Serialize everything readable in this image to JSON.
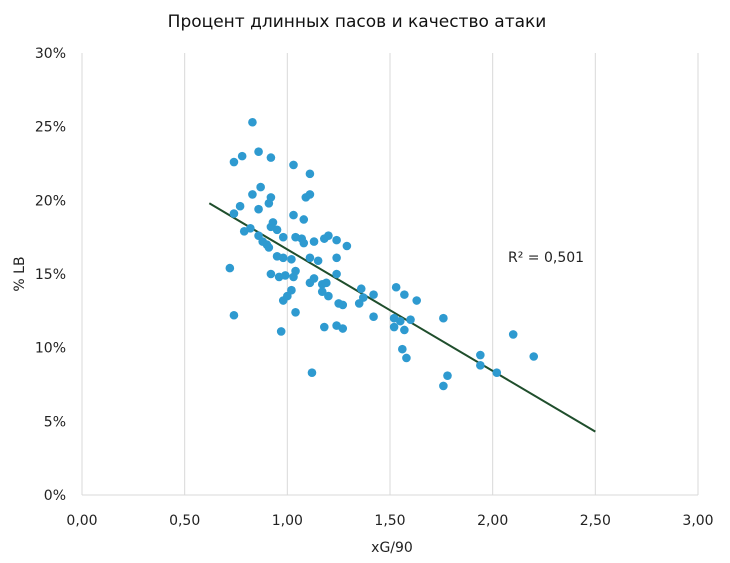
{
  "chart_data": {
    "type": "scatter",
    "title": "Процент длинных пасов и качество атаки",
    "xlabel": "xG/90",
    "ylabel": "% LB",
    "xlim": [
      0,
      3
    ],
    "ylim": [
      0,
      30
    ],
    "xticks": [
      "0,00",
      "0,50",
      "1,00",
      "1,50",
      "2,00",
      "2,50",
      "3,00"
    ],
    "yticks": [
      "0%",
      "5%",
      "10%",
      "15%",
      "20%",
      "25%",
      "30%"
    ],
    "grid": "vertical",
    "point_color": "#2E9AD0",
    "trendline": {
      "type": "linear",
      "color": "#1F4E2C",
      "from": [
        0.62,
        19.8
      ],
      "to": [
        2.5,
        4.3
      ],
      "annotation": "R² = 0,501"
    },
    "series": [
      {
        "points": [
          [
            0.83,
            25.3
          ],
          [
            0.74,
            22.6
          ],
          [
            0.78,
            23.0
          ],
          [
            0.86,
            23.3
          ],
          [
            0.92,
            22.9
          ],
          [
            1.03,
            22.4
          ],
          [
            1.11,
            21.8
          ],
          [
            0.87,
            20.9
          ],
          [
            0.83,
            20.4
          ],
          [
            1.09,
            20.2
          ],
          [
            1.11,
            20.4
          ],
          [
            0.92,
            20.2
          ],
          [
            0.74,
            19.1
          ],
          [
            0.77,
            19.6
          ],
          [
            0.86,
            19.4
          ],
          [
            0.91,
            19.8
          ],
          [
            1.03,
            19.0
          ],
          [
            1.08,
            18.7
          ],
          [
            0.93,
            18.5
          ],
          [
            0.92,
            18.2
          ],
          [
            0.82,
            18.1
          ],
          [
            0.79,
            17.9
          ],
          [
            0.95,
            18.0
          ],
          [
            0.88,
            17.2
          ],
          [
            0.86,
            17.6
          ],
          [
            0.9,
            17.0
          ],
          [
            0.91,
            16.8
          ],
          [
            0.98,
            17.5
          ],
          [
            1.04,
            17.5
          ],
          [
            1.07,
            17.4
          ],
          [
            1.08,
            17.1
          ],
          [
            1.13,
            17.2
          ],
          [
            1.18,
            17.4
          ],
          [
            1.2,
            17.6
          ],
          [
            1.24,
            17.3
          ],
          [
            1.29,
            16.9
          ],
          [
            0.95,
            16.2
          ],
          [
            0.98,
            16.1
          ],
          [
            1.02,
            16.0
          ],
          [
            1.11,
            16.1
          ],
          [
            1.15,
            15.9
          ],
          [
            1.24,
            16.1
          ],
          [
            0.72,
            15.4
          ],
          [
            0.92,
            15.0
          ],
          [
            0.96,
            14.8
          ],
          [
            0.99,
            14.9
          ],
          [
            1.04,
            15.2
          ],
          [
            1.03,
            14.8
          ],
          [
            1.13,
            14.7
          ],
          [
            1.17,
            14.3
          ],
          [
            1.24,
            15.0
          ],
          [
            1.11,
            14.4
          ],
          [
            1.19,
            14.4
          ],
          [
            1.02,
            13.9
          ],
          [
            1.17,
            13.8
          ],
          [
            0.98,
            13.2
          ],
          [
            1.0,
            13.5
          ],
          [
            1.04,
            12.4
          ],
          [
            1.2,
            13.5
          ],
          [
            1.25,
            13.0
          ],
          [
            1.27,
            12.9
          ],
          [
            1.36,
            14.0
          ],
          [
            1.37,
            13.4
          ],
          [
            1.42,
            13.6
          ],
          [
            1.35,
            13.0
          ],
          [
            1.42,
            12.1
          ],
          [
            1.53,
            14.1
          ],
          [
            1.57,
            13.6
          ],
          [
            1.63,
            13.2
          ],
          [
            0.74,
            12.2
          ],
          [
            0.97,
            11.1
          ],
          [
            1.18,
            11.4
          ],
          [
            1.24,
            11.5
          ],
          [
            1.27,
            11.3
          ],
          [
            1.52,
            12.0
          ],
          [
            1.55,
            11.8
          ],
          [
            1.6,
            11.9
          ],
          [
            1.52,
            11.4
          ],
          [
            1.57,
            11.2
          ],
          [
            1.76,
            12.0
          ],
          [
            1.56,
            9.9
          ],
          [
            1.58,
            9.3
          ],
          [
            1.12,
            8.3
          ],
          [
            1.78,
            8.1
          ],
          [
            1.76,
            7.4
          ],
          [
            1.94,
            9.5
          ],
          [
            1.94,
            8.8
          ],
          [
            2.02,
            8.3
          ],
          [
            2.1,
            10.9
          ],
          [
            2.2,
            9.4
          ]
        ]
      }
    ]
  }
}
